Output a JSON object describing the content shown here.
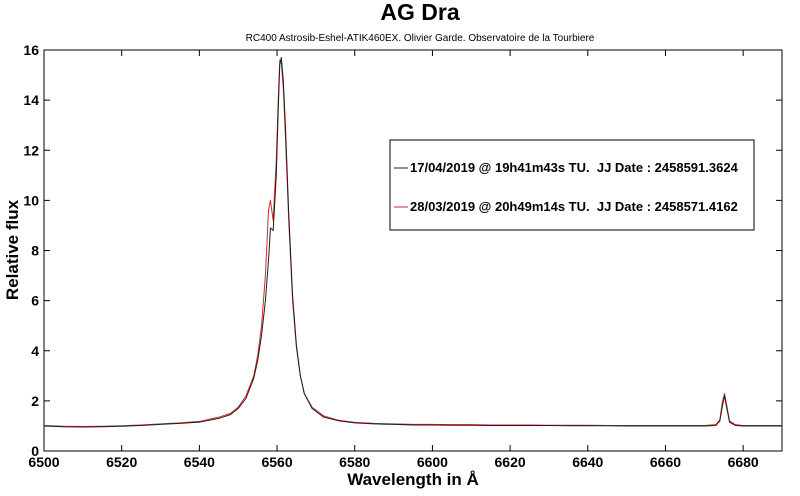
{
  "chart_data": {
    "type": "line",
    "title": "AG Dra",
    "subtitle": "RC400 Astrosib-Eshel-ATIK460EX. Olivier Garde. Observatoire de la Tourbiere",
    "xlabel": "Wavelength in Å",
    "ylabel": "Relative flux",
    "xlim": [
      6500,
      6690
    ],
    "ylim": [
      0,
      16
    ],
    "xticks": [
      6500,
      6520,
      6540,
      6560,
      6580,
      6600,
      6620,
      6640,
      6660,
      6680
    ],
    "yticks": [
      0,
      2,
      4,
      6,
      8,
      10,
      12,
      14,
      16
    ],
    "grid": false,
    "legend_position": "upper-right",
    "series": [
      {
        "name": "17/04/2019 @ 19h41m43s TU.  JJ Date : 2458591.3624",
        "color": "#1f1f1f",
        "x": [
          6500,
          6505,
          6510,
          6515,
          6520,
          6525,
          6530,
          6535,
          6540,
          6545,
          6548,
          6550,
          6552,
          6554,
          6555,
          6556,
          6557,
          6557.8,
          6558.3,
          6559,
          6559.8,
          6560.3,
          6560.7,
          6561.1,
          6561.6,
          6562.2,
          6563,
          6564,
          6565,
          6566,
          6567,
          6569,
          6572,
          6576,
          6580,
          6585,
          6590,
          6595,
          6600,
          6605,
          6610,
          6615,
          6620,
          6625,
          6630,
          6635,
          6640,
          6645,
          6650,
          6655,
          6660,
          6665,
          6670,
          6673,
          6674,
          6674.6,
          6675.2,
          6675.8,
          6676.5,
          6678,
          6680,
          6685,
          6690
        ],
        "y": [
          1.0,
          0.97,
          0.96,
          0.97,
          0.99,
          1.02,
          1.06,
          1.1,
          1.15,
          1.3,
          1.45,
          1.7,
          2.1,
          2.9,
          3.6,
          4.6,
          6.0,
          7.6,
          8.9,
          8.8,
          11.0,
          13.6,
          15.4,
          15.7,
          14.8,
          12.8,
          9.5,
          6.2,
          4.2,
          3.0,
          2.3,
          1.7,
          1.35,
          1.2,
          1.12,
          1.08,
          1.06,
          1.04,
          1.04,
          1.03,
          1.03,
          1.02,
          1.02,
          1.02,
          1.02,
          1.01,
          1.01,
          1.01,
          1.0,
          1.0,
          1.0,
          1.0,
          1.0,
          1.02,
          1.2,
          1.75,
          2.2,
          1.7,
          1.15,
          1.02,
          1.0,
          1.0,
          1.0
        ]
      },
      {
        "name": "28/03/2019 @ 20h49m14s TU.  JJ Date : 2458571.4162",
        "color": "#cc2b2b",
        "x": [
          6500,
          6505,
          6510,
          6515,
          6520,
          6525,
          6530,
          6535,
          6540,
          6545,
          6548,
          6550,
          6552,
          6554,
          6555,
          6556,
          6557,
          6557.8,
          6558.3,
          6559,
          6559.8,
          6560.3,
          6560.7,
          6561.1,
          6561.6,
          6562.2,
          6563,
          6564,
          6565,
          6566,
          6567,
          6569,
          6572,
          6576,
          6580,
          6585,
          6590,
          6595,
          6600,
          6605,
          6610,
          6615,
          6620,
          6625,
          6630,
          6635,
          6640,
          6645,
          6650,
          6655,
          6660,
          6665,
          6670,
          6673,
          6674,
          6674.6,
          6675.2,
          6675.8,
          6676.5,
          6678,
          6680,
          6685,
          6690
        ],
        "y": [
          1.02,
          0.99,
          0.98,
          0.99,
          1.01,
          1.04,
          1.08,
          1.12,
          1.18,
          1.35,
          1.5,
          1.75,
          2.2,
          3.0,
          3.8,
          5.0,
          7.0,
          9.6,
          10.0,
          9.2,
          11.6,
          14.0,
          15.6,
          15.5,
          14.5,
          12.4,
          9.2,
          6.0,
          4.1,
          3.0,
          2.3,
          1.75,
          1.4,
          1.22,
          1.14,
          1.1,
          1.08,
          1.06,
          1.06,
          1.05,
          1.05,
          1.04,
          1.04,
          1.04,
          1.03,
          1.03,
          1.03,
          1.02,
          1.02,
          1.02,
          1.02,
          1.02,
          1.02,
          1.05,
          1.25,
          1.9,
          2.3,
          1.8,
          1.2,
          1.05,
          1.02,
          1.02,
          1.02
        ]
      }
    ]
  }
}
